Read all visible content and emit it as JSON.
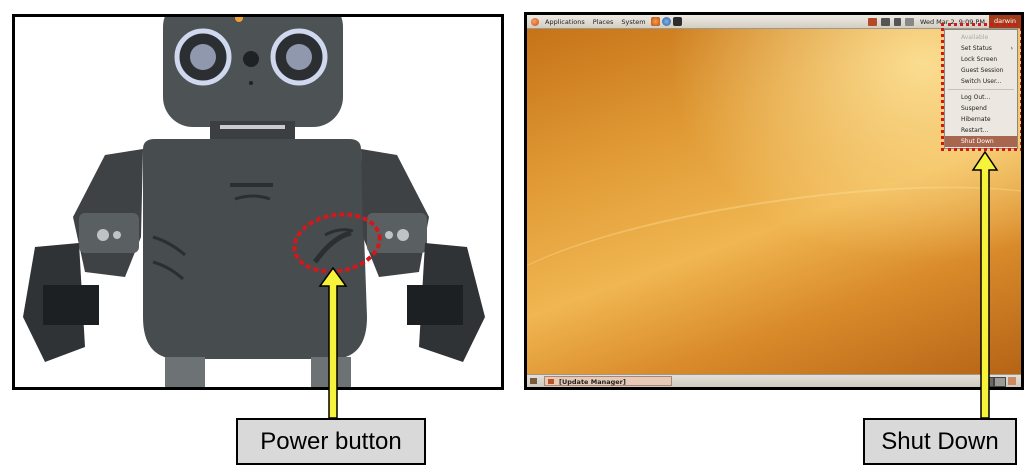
{
  "callouts": {
    "power_button": "Power button",
    "shut_down": "Shut Down"
  },
  "desktop": {
    "topbar": {
      "menus": [
        "Applications",
        "Places",
        "System"
      ],
      "clock": "Wed Mar  2,  9:09 PM",
      "user": "darwin"
    },
    "system_menu": {
      "items": [
        {
          "label": "Available",
          "disabled": true
        },
        {
          "label": "Set Status",
          "submenu": true
        },
        {
          "label": "Lock Screen"
        },
        {
          "label": "Guest Session"
        },
        {
          "label": "Switch User..."
        },
        {
          "label": "Log Out..."
        },
        {
          "label": "Suspend"
        },
        {
          "label": "Hibernate"
        },
        {
          "label": "Restart..."
        },
        {
          "label": "Shut Down",
          "active": true
        }
      ]
    },
    "taskbar": {
      "window": "[Update Manager]"
    }
  },
  "colors": {
    "highlight": "#d1191b",
    "arrow_fill": "#f6f33a",
    "label_bg": "#d9d9d9",
    "panel_user": "#a33a1a"
  },
  "icons": {
    "menu_logo": "ubuntu-logo-icon",
    "launchers": [
      "firefox-icon",
      "help-icon",
      "terminal-icon"
    ],
    "tray": [
      "network-icon",
      "volume-icon",
      "signal-icon",
      "mail-icon"
    ]
  }
}
